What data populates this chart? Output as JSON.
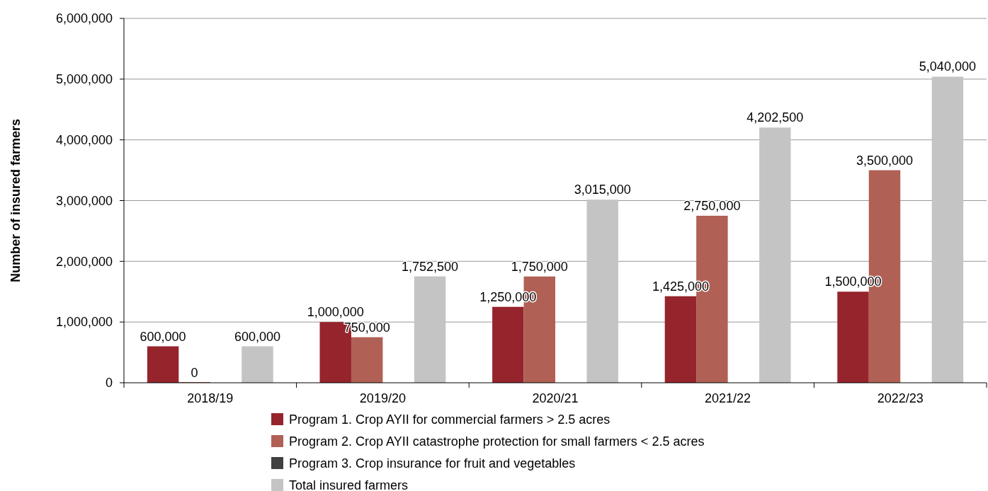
{
  "chart_data": {
    "type": "bar",
    "ylabel": "Number of insured farmers",
    "categories": [
      "2018/19",
      "2019/20",
      "2020/21",
      "2021/22",
      "2022/23"
    ],
    "series": [
      {
        "name": "Program 1. Crop AYII for commercial farmers > 2.5 acres",
        "color": "#96242c",
        "values": [
          600000,
          1000000,
          1250000,
          1425000,
          1500000
        ],
        "value_labels": [
          "600,000",
          "1,000,000",
          "1,250,000",
          "1,425,000",
          "1,500,000"
        ]
      },
      {
        "name": "Program 2. Crop AYII catastrophe protection for small farmers < 2.5 acres",
        "color": "#b06055",
        "values": [
          0,
          750000,
          1750000,
          2750000,
          3500000
        ],
        "value_labels": [
          "0",
          "750,000",
          "1,750,000",
          "2,750,000",
          "3,500,000"
        ]
      },
      {
        "name": "Program 3. Crop insurance for fruit and vegetables",
        "color": "#404040",
        "values": [
          null,
          null,
          null,
          null,
          null
        ]
      },
      {
        "name": "Total insured farmers",
        "color": "#c4c4c4",
        "values": [
          600000,
          1752500,
          3015000,
          4202500,
          5040000
        ],
        "value_labels": [
          "600,000",
          "1,752,500",
          "3,015,000",
          "4,202,500",
          "5,040,000"
        ]
      }
    ],
    "ylim": [
      0,
      6000000
    ],
    "yticks": [
      {
        "value": 0,
        "label": "0"
      },
      {
        "value": 1000000,
        "label": "1,000,000"
      },
      {
        "value": 2000000,
        "label": "2,000,000"
      },
      {
        "value": 3000000,
        "label": "3,000,000"
      },
      {
        "value": 4000000,
        "label": "4,000,000"
      },
      {
        "value": 5000000,
        "label": "5,000,000"
      },
      {
        "value": 6000000,
        "label": "6,000,000"
      }
    ],
    "grid": "y",
    "legend": "bottom"
  }
}
